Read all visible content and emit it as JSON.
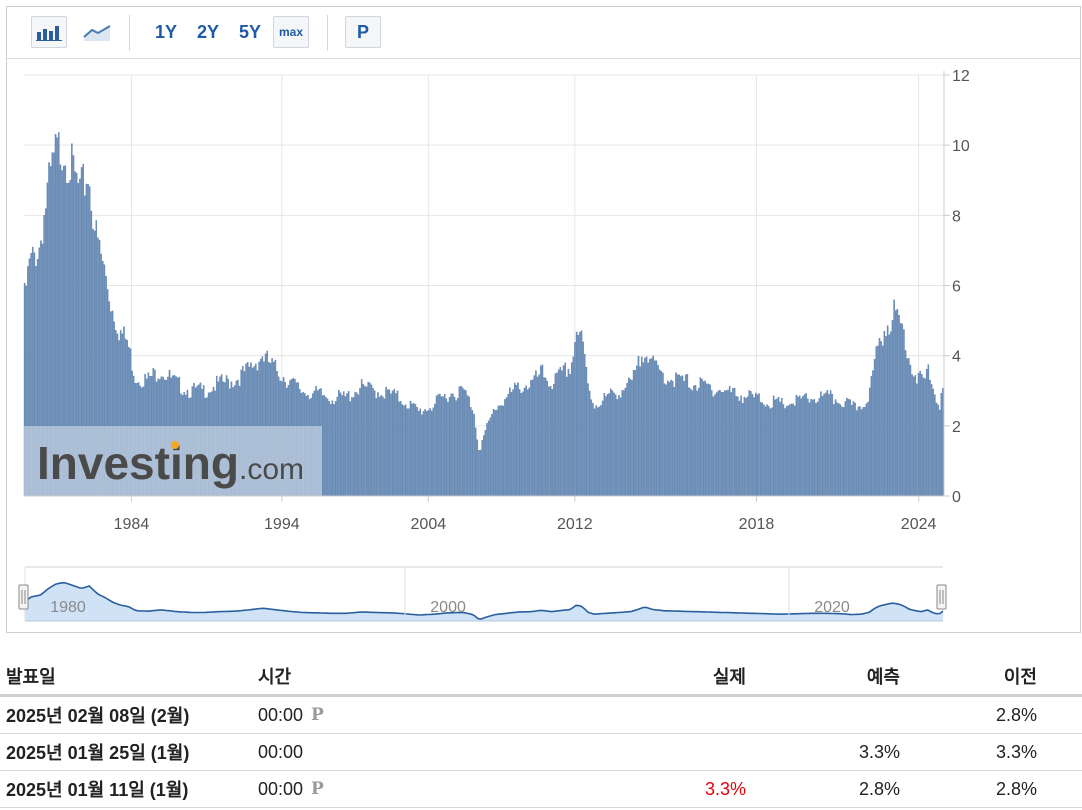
{
  "toolbar": {
    "bar_chart_icon": "bar-chart-icon",
    "line_chart_icon": "line-chart-icon",
    "ranges": [
      "1Y",
      "2Y",
      "5Y"
    ],
    "max_label": "max",
    "p_label": "P"
  },
  "watermark": {
    "brand": "Investing",
    "suffix": ".com"
  },
  "colors": {
    "bar": "#6a8fba",
    "bar_stroke": "#5577a3",
    "navigator_fill": "#cfe2f6",
    "navigator_line": "#2a5f9e",
    "actual_red": "#e8000b"
  },
  "chart_data": {
    "type": "bar",
    "x_start": 1978.0,
    "x_end": 2025.1,
    "x_step": 0.0833,
    "ylim": [
      0,
      12
    ],
    "y_ticks": [
      0,
      2,
      4,
      6,
      8,
      10,
      12
    ],
    "x_tick_labels": [
      "1984",
      "1994",
      "2004",
      "2012",
      "2018",
      "2024"
    ],
    "x_tick_positions": [
      1983.5,
      1991.2,
      1998.7,
      2006.2,
      2015.5,
      2023.8
    ],
    "grid": true,
    "keypoints": [
      [
        1978.0,
        5.5
      ],
      [
        1978.3,
        6.6
      ],
      [
        1978.8,
        7.1
      ],
      [
        1979.2,
        8.6
      ],
      [
        1979.6,
        9.7
      ],
      [
        1980.0,
        10.0
      ],
      [
        1980.4,
        9.4
      ],
      [
        1980.9,
        8.6
      ],
      [
        1981.3,
        9.2
      ],
      [
        1981.7,
        7.4
      ],
      [
        1982.1,
        6.5
      ],
      [
        1982.5,
        5.4
      ],
      [
        1982.9,
        4.7
      ],
      [
        1983.3,
        4.4
      ],
      [
        1983.7,
        3.4
      ],
      [
        1984.3,
        3.3
      ],
      [
        1985.0,
        3.6
      ],
      [
        1985.8,
        3.2
      ],
      [
        1986.5,
        3.0
      ],
      [
        1987.2,
        3.0
      ],
      [
        1988.0,
        3.2
      ],
      [
        1988.8,
        3.3
      ],
      [
        1989.5,
        3.6
      ],
      [
        1990.2,
        4.0
      ],
      [
        1990.9,
        3.6
      ],
      [
        1991.5,
        3.3
      ],
      [
        1992.2,
        3.0
      ],
      [
        1993.0,
        2.9
      ],
      [
        1993.8,
        2.8
      ],
      [
        1994.5,
        2.8
      ],
      [
        1995.2,
        3.1
      ],
      [
        1996.0,
        3.0
      ],
      [
        1996.8,
        2.9
      ],
      [
        1997.5,
        2.7
      ],
      [
        1998.2,
        2.4
      ],
      [
        1999.0,
        2.6
      ],
      [
        1999.7,
        2.9
      ],
      [
        2000.5,
        3.0
      ],
      [
        2001.0,
        2.5
      ],
      [
        2001.3,
        1.3
      ],
      [
        2001.6,
        1.8
      ],
      [
        2002.1,
        2.5
      ],
      [
        2002.7,
        2.8
      ],
      [
        2003.3,
        3.1
      ],
      [
        2004.0,
        3.2
      ],
      [
        2004.5,
        3.5
      ],
      [
        2005.0,
        3.2
      ],
      [
        2005.6,
        3.5
      ],
      [
        2006.0,
        3.7
      ],
      [
        2006.3,
        4.8
      ],
      [
        2006.6,
        4.3
      ],
      [
        2006.9,
        3.0
      ],
      [
        2007.2,
        2.6
      ],
      [
        2007.8,
        2.8
      ],
      [
        2008.5,
        3.0
      ],
      [
        2009.1,
        3.2
      ],
      [
        2009.5,
        3.8
      ],
      [
        2009.8,
        4.3
      ],
      [
        2010.2,
        3.7
      ],
      [
        2010.8,
        3.4
      ],
      [
        2011.5,
        3.3
      ],
      [
        2012.3,
        3.2
      ],
      [
        2013.0,
        3.1
      ],
      [
        2013.8,
        3.0
      ],
      [
        2014.5,
        2.9
      ],
      [
        2015.3,
        2.8
      ],
      [
        2016.0,
        2.7
      ],
      [
        2016.8,
        2.6
      ],
      [
        2017.6,
        2.7
      ],
      [
        2018.4,
        2.8
      ],
      [
        2019.2,
        2.8
      ],
      [
        2019.9,
        2.7
      ],
      [
        2020.4,
        2.5
      ],
      [
        2020.9,
        2.6
      ],
      [
        2021.3,
        3.0
      ],
      [
        2021.6,
        4.0
      ],
      [
        2021.9,
        4.6
      ],
      [
        2022.2,
        4.9
      ],
      [
        2022.5,
        5.2
      ],
      [
        2022.8,
        5.0
      ],
      [
        2023.1,
        4.5
      ],
      [
        2023.4,
        3.7
      ],
      [
        2023.7,
        3.4
      ],
      [
        2024.0,
        3.2
      ],
      [
        2024.3,
        3.6
      ],
      [
        2024.6,
        2.9
      ],
      [
        2024.9,
        2.6
      ],
      [
        2025.1,
        3.3
      ]
    ],
    "navigator": {
      "labels": [
        "1980",
        "2000",
        "2020"
      ],
      "label_positions": [
        1978.0,
        1997.5,
        2017.2
      ]
    }
  },
  "table": {
    "headers": {
      "date": "발표일",
      "time": "시간",
      "actual": "실제",
      "forecast": "예측",
      "previous": "이전"
    },
    "rows": [
      {
        "date": "2025년 02월 08일 (2월)",
        "time": "00:00",
        "p_mark": "P",
        "actual": "",
        "forecast": "",
        "previous": "2.8%"
      },
      {
        "date": "2025년 01월 25일 (1월)",
        "time": "00:00",
        "p_mark": "",
        "actual": "",
        "forecast": "3.3%",
        "previous": "3.3%"
      },
      {
        "date": "2025년 01월 11일 (1월)",
        "time": "00:00",
        "p_mark": "P",
        "actual": "3.3%",
        "forecast": "2.8%",
        "previous": "2.8%"
      }
    ]
  }
}
